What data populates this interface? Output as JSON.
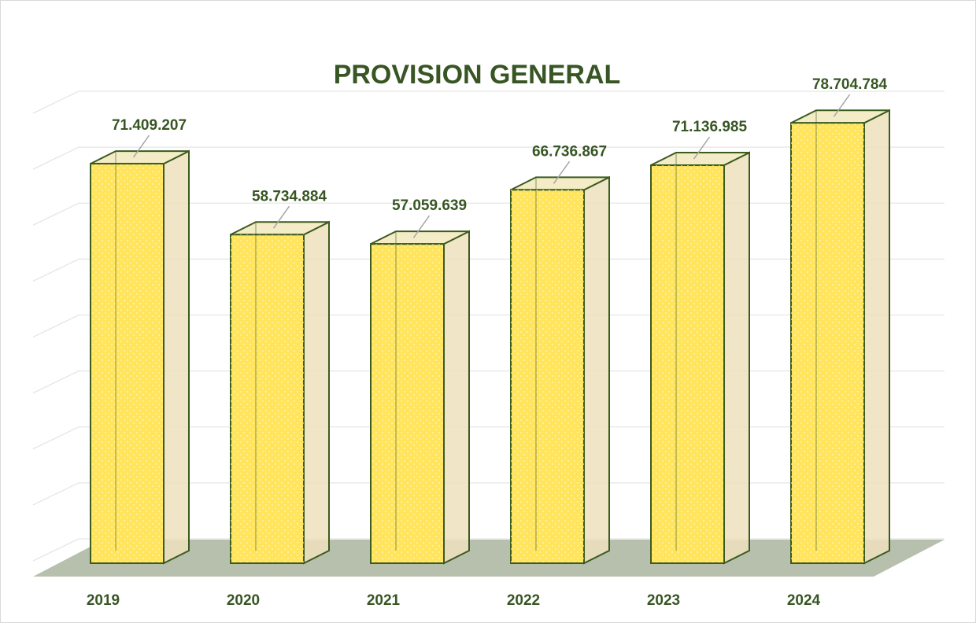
{
  "chart_data": {
    "type": "bar3d",
    "title": "PROVISION GENERAL",
    "categories": [
      "2019",
      "2020",
      "2021",
      "2022",
      "2023",
      "2024"
    ],
    "values": [
      71409207,
      58734884,
      57059639,
      66736867,
      71136985,
      78704784
    ],
    "value_labels": [
      "71.409.207",
      "58.734.884",
      "57.059.639",
      "66.736.867",
      "71.136.985",
      "78.704.784"
    ],
    "color": "#ffe45c",
    "ylim": [
      0,
      80000000
    ],
    "yticks": [
      0,
      10000000,
      20000000,
      30000000,
      40000000,
      50000000,
      60000000,
      70000000,
      80000000
    ],
    "grid": true
  }
}
